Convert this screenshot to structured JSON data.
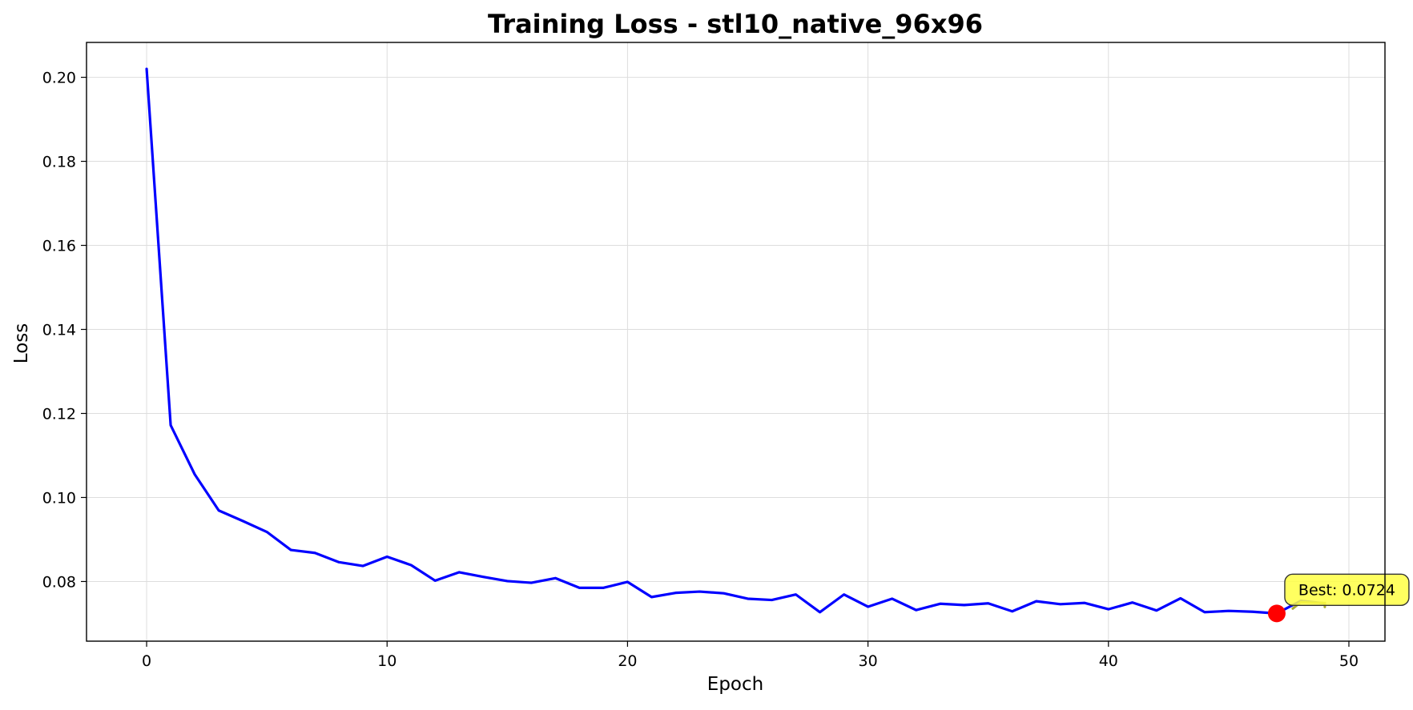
{
  "chart_data": {
    "type": "line",
    "title": "Training Loss - stl10_native_96x96",
    "xlabel": "Epoch",
    "ylabel": "Loss",
    "xlim": [
      -2.5,
      51.5
    ],
    "ylim": [
      0.0658,
      0.2083
    ],
    "xticks": [
      0,
      10,
      20,
      30,
      40,
      50
    ],
    "yticks": [
      0.08,
      0.1,
      0.12,
      0.14,
      0.16,
      0.18,
      0.2
    ],
    "ytick_labels": [
      "0.08",
      "0.10",
      "0.12",
      "0.14",
      "0.16",
      "0.18",
      "0.20"
    ],
    "grid": true,
    "line_color": "#0000ff",
    "series": [
      {
        "x": [
          0,
          1,
          2,
          3,
          4,
          5,
          6,
          7,
          8,
          9,
          10,
          11,
          12,
          13,
          14,
          15,
          16,
          17,
          18,
          19,
          20,
          21,
          22,
          23,
          24,
          25,
          26,
          27,
          28,
          29,
          30,
          31,
          32,
          33,
          34,
          35,
          36,
          37,
          38,
          39,
          40,
          41,
          42,
          43,
          44,
          45,
          46,
          47,
          48,
          49
        ],
        "values": [
          0.202,
          0.1172,
          0.1055,
          0.0969,
          0.0944,
          0.0918,
          0.0875,
          0.0868,
          0.0846,
          0.0837,
          0.0859,
          0.0839,
          0.0802,
          0.0822,
          0.0811,
          0.0801,
          0.0797,
          0.0808,
          0.0785,
          0.0785,
          0.0799,
          0.0763,
          0.0773,
          0.0776,
          0.0772,
          0.0759,
          0.0756,
          0.0769,
          0.0727,
          0.0769,
          0.074,
          0.0759,
          0.0732,
          0.0747,
          0.0744,
          0.0748,
          0.0729,
          0.0753,
          0.0746,
          0.0749,
          0.0734,
          0.075,
          0.0731,
          0.076,
          0.0727,
          0.073,
          0.0728,
          0.0724,
          0.0754,
          0.0748
        ]
      }
    ],
    "best": {
      "epoch": 47,
      "value": 0.0724,
      "label": "Best: 0.0724",
      "marker_color": "#ff0000",
      "box_color": "#ffff44"
    }
  }
}
